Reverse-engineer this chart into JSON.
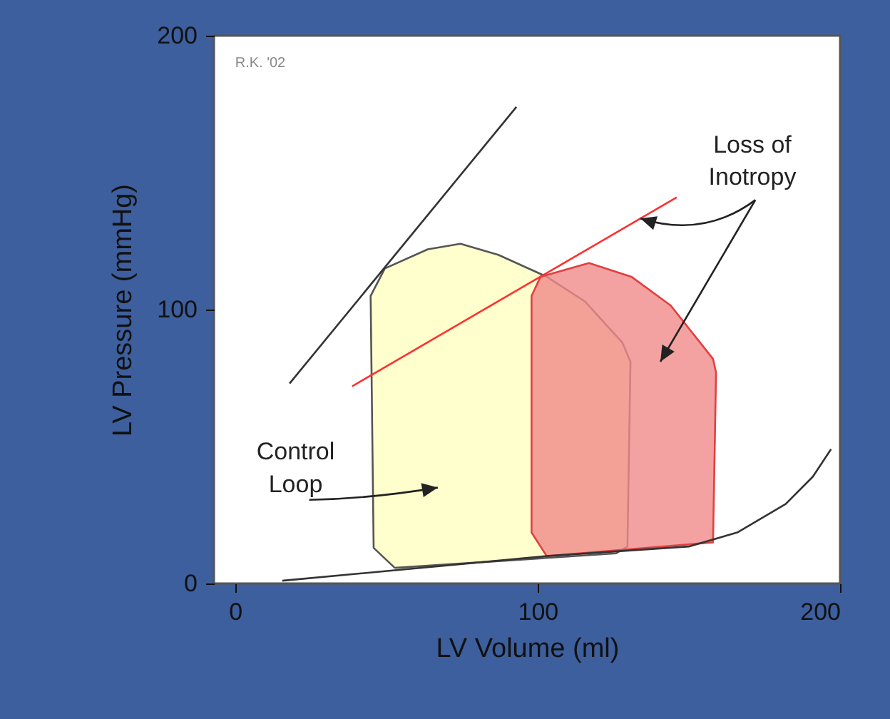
{
  "chart_data": {
    "type": "line",
    "xlabel": "LV Volume (ml)",
    "ylabel": "LV Pressure (mmHg)",
    "xlim": [
      -7,
      200
    ],
    "ylim": [
      0,
      200
    ],
    "xticks": [
      0,
      100,
      200
    ],
    "yticks": [
      0,
      100,
      200
    ],
    "grid": false,
    "marker": "none",
    "annotations": [
      "R.K. '02",
      "Control Loop",
      {
        "text": "Loss of Inotropy",
        "x": 134,
        "y": 133.3
      }
    ],
    "series": [
      {
        "type": "area",
        "color": "#ffffc0",
        "x": [
          52.8,
          45.8,
          44.8,
          49.5,
          63.7,
          74.5,
          87,
          103,
          115.6,
          128,
          130.7,
          129.7,
          126,
          52.8
        ],
        "values": [
          5.7,
          13,
          105,
          115,
          122,
          124,
          120,
          112,
          103,
          88,
          81,
          13.5,
          11,
          5.7
        ]
      },
      {
        "type": "area",
        "color": "#f08a8a",
        "x": [
          103,
          98,
          98,
          101,
          117,
          131,
          144,
          158,
          159,
          158,
          103
        ],
        "values": [
          10,
          18.6,
          105,
          112,
          117,
          112,
          101.5,
          82,
          77,
          15,
          10
        ]
      },
      {
        "color": "#333333",
        "x": [
          18,
          93
        ],
        "values": [
          73,
          174
        ]
      },
      {
        "color": "#ff3030",
        "x": [
          38.7,
          146
        ],
        "values": [
          72,
          141
        ]
      },
      {
        "color": "#333333",
        "x": [
          15.6,
          103,
          150,
          166,
          182,
          191,
          197
        ],
        "values": [
          1,
          10,
          13.5,
          18.6,
          29,
          39,
          49
        ]
      }
    ]
  }
}
